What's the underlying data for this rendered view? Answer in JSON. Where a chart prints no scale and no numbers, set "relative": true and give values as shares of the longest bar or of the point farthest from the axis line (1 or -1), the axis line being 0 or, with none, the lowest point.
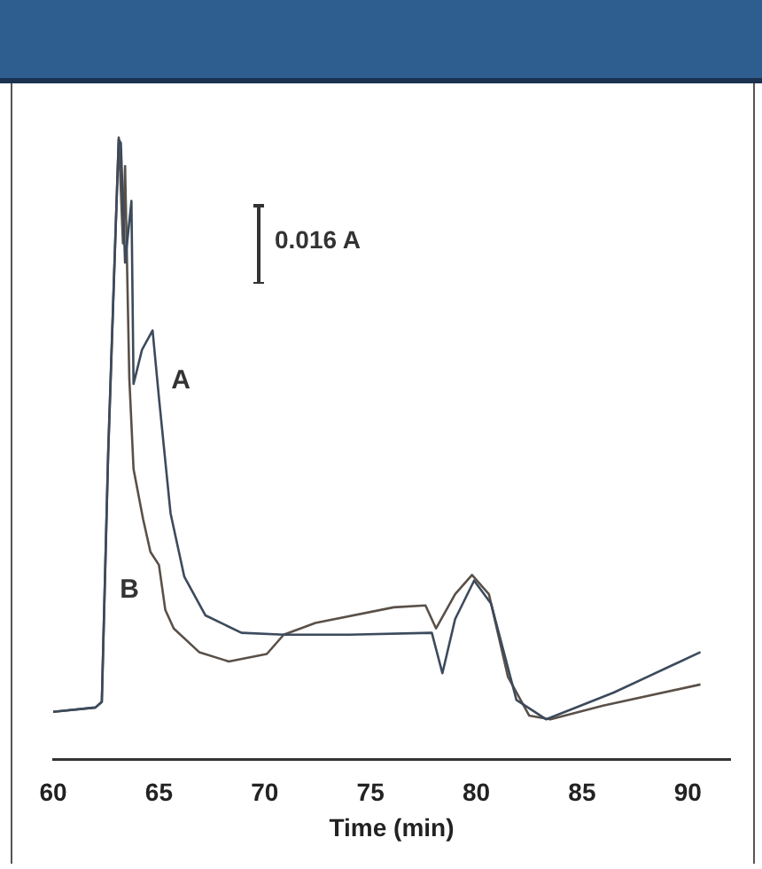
{
  "chart_data": {
    "type": "line",
    "relative": true,
    "xlabel": "Time (min)",
    "xlim": [
      60,
      92
    ],
    "xticks": [
      60,
      65,
      70,
      75,
      80,
      85,
      90
    ],
    "grid": false,
    "legend": false,
    "tick_labels": "x",
    "marker": "none",
    "line_style": "solid",
    "series": [
      {
        "name": "A",
        "color": "#3c4a5c",
        "x": [
          60,
          62.0,
          62.3,
          62.6,
          62.9,
          63.1,
          63.2,
          63.4,
          63.7,
          63.8,
          64.2,
          64.7,
          65.0,
          65.55,
          66.2,
          67.2,
          68.9,
          70.9,
          74,
          77.9,
          78.4,
          79.0,
          79.9,
          80.7,
          81.9,
          83.3,
          86.5,
          90.6
        ],
        "values": [
          0.077,
          0.084,
          0.093,
          0.492,
          0.799,
          0.997,
          0.991,
          0.799,
          0.898,
          0.604,
          0.659,
          0.69,
          0.582,
          0.396,
          0.294,
          0.232,
          0.204,
          0.201,
          0.201,
          0.204,
          0.139,
          0.226,
          0.288,
          0.251,
          0.096,
          0.065,
          0.108,
          0.173
        ]
      },
      {
        "name": "B",
        "color": "#5a5048",
        "x": [
          60,
          62.0,
          62.3,
          62.6,
          62.9,
          63.1,
          63.3,
          63.4,
          63.6,
          63.8,
          64.25,
          64.6,
          65.0,
          65.3,
          65.7,
          66.9,
          68.3,
          70.1,
          70.9,
          72.4,
          76.1,
          77.6,
          78.1,
          79.0,
          79.8,
          80.6,
          81.5,
          82.5,
          83.5,
          86,
          90.6
        ],
        "values": [
          0.077,
          0.084,
          0.093,
          0.492,
          0.799,
          1.0,
          0.83,
          0.954,
          0.613,
          0.467,
          0.387,
          0.334,
          0.313,
          0.241,
          0.211,
          0.173,
          0.158,
          0.17,
          0.201,
          0.22,
          0.245,
          0.248,
          0.211,
          0.266,
          0.297,
          0.266,
          0.133,
          0.071,
          0.065,
          0.087,
          0.121
        ]
      }
    ],
    "annotations": [
      "0.016 A"
    ]
  }
}
